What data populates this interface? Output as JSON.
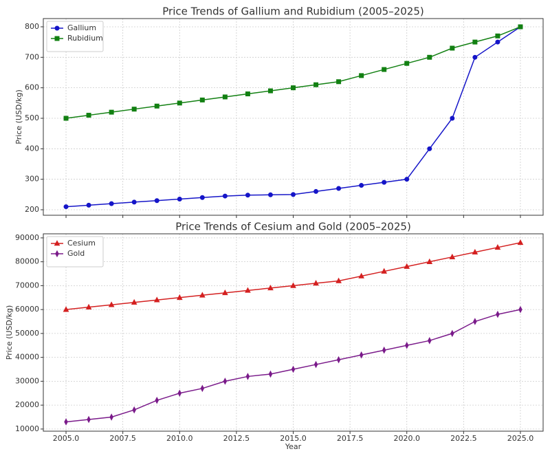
{
  "chart_data": [
    {
      "type": "line",
      "title": "Price Trends of Gallium and Rubidium (2005–2025)",
      "y_label": "Price (USD/kg)",
      "x": [
        2005,
        2006,
        2007,
        2008,
        2009,
        2010,
        2011,
        2012,
        2013,
        2014,
        2015,
        2016,
        2017,
        2018,
        2019,
        2020,
        2021,
        2022,
        2023,
        2024,
        2025
      ],
      "series": [
        {
          "name": "Gallium",
          "color": "#1515c8",
          "marker": "circle",
          "values": [
            210,
            215,
            220,
            225,
            230,
            235,
            240,
            245,
            248,
            249,
            250,
            260,
            270,
            280,
            290,
            300,
            400,
            500,
            700,
            750,
            800
          ]
        },
        {
          "name": "Rubidium",
          "color": "#128012",
          "marker": "square",
          "values": [
            500,
            510,
            520,
            530,
            540,
            550,
            560,
            570,
            580,
            590,
            600,
            610,
            620,
            640,
            660,
            680,
            700,
            730,
            750,
            770,
            800
          ]
        }
      ],
      "xlim": [
        2004,
        2026
      ],
      "ylim": [
        182,
        827
      ],
      "yticks": [
        200,
        300,
        400,
        500,
        600,
        700,
        800
      ],
      "grid": true,
      "legend": "upper left"
    },
    {
      "type": "line",
      "title": "Price Trends of Cesium and Gold (2005–2025)",
      "y_label": "Price (USD/kg)",
      "x_label": "Year",
      "x": [
        2005,
        2006,
        2007,
        2008,
        2009,
        2010,
        2011,
        2012,
        2013,
        2014,
        2015,
        2016,
        2017,
        2018,
        2019,
        2020,
        2021,
        2022,
        2023,
        2024,
        2025
      ],
      "series": [
        {
          "name": "Cesium",
          "color": "#d42020",
          "marker": "triangle",
          "values": [
            60000,
            61000,
            62000,
            63000,
            64000,
            65000,
            66000,
            67000,
            68000,
            69000,
            70000,
            71000,
            72000,
            74000,
            76000,
            78000,
            80000,
            82000,
            84000,
            86000,
            88000
          ]
        },
        {
          "name": "Gold",
          "color": "#7a1a8a",
          "marker": "thin_diamond",
          "values": [
            13000,
            14000,
            15000,
            18000,
            22000,
            25000,
            27000,
            30000,
            32000,
            33000,
            35000,
            37000,
            39000,
            41000,
            43000,
            45000,
            47000,
            50000,
            55000,
            58000,
            60000
          ]
        }
      ],
      "xlim": [
        2004,
        2026
      ],
      "ylim": [
        9100,
        91700
      ],
      "yticks": [
        10000,
        20000,
        30000,
        40000,
        50000,
        60000,
        70000,
        80000,
        90000
      ],
      "xticks": [
        {
          "value": 2005,
          "label": "2005.0"
        },
        {
          "value": 2007.5,
          "label": "2007.5"
        },
        {
          "value": 2010,
          "label": "2010.0"
        },
        {
          "value": 2012.5,
          "label": "2012.5"
        },
        {
          "value": 2015,
          "label": "2015.0"
        },
        {
          "value": 2017.5,
          "label": "2017.5"
        },
        {
          "value": 2020,
          "label": "2020.0"
        },
        {
          "value": 2022.5,
          "label": "2022.5"
        },
        {
          "value": 2025,
          "label": "2025.0"
        }
      ],
      "grid": true,
      "legend": "upper left"
    }
  ]
}
